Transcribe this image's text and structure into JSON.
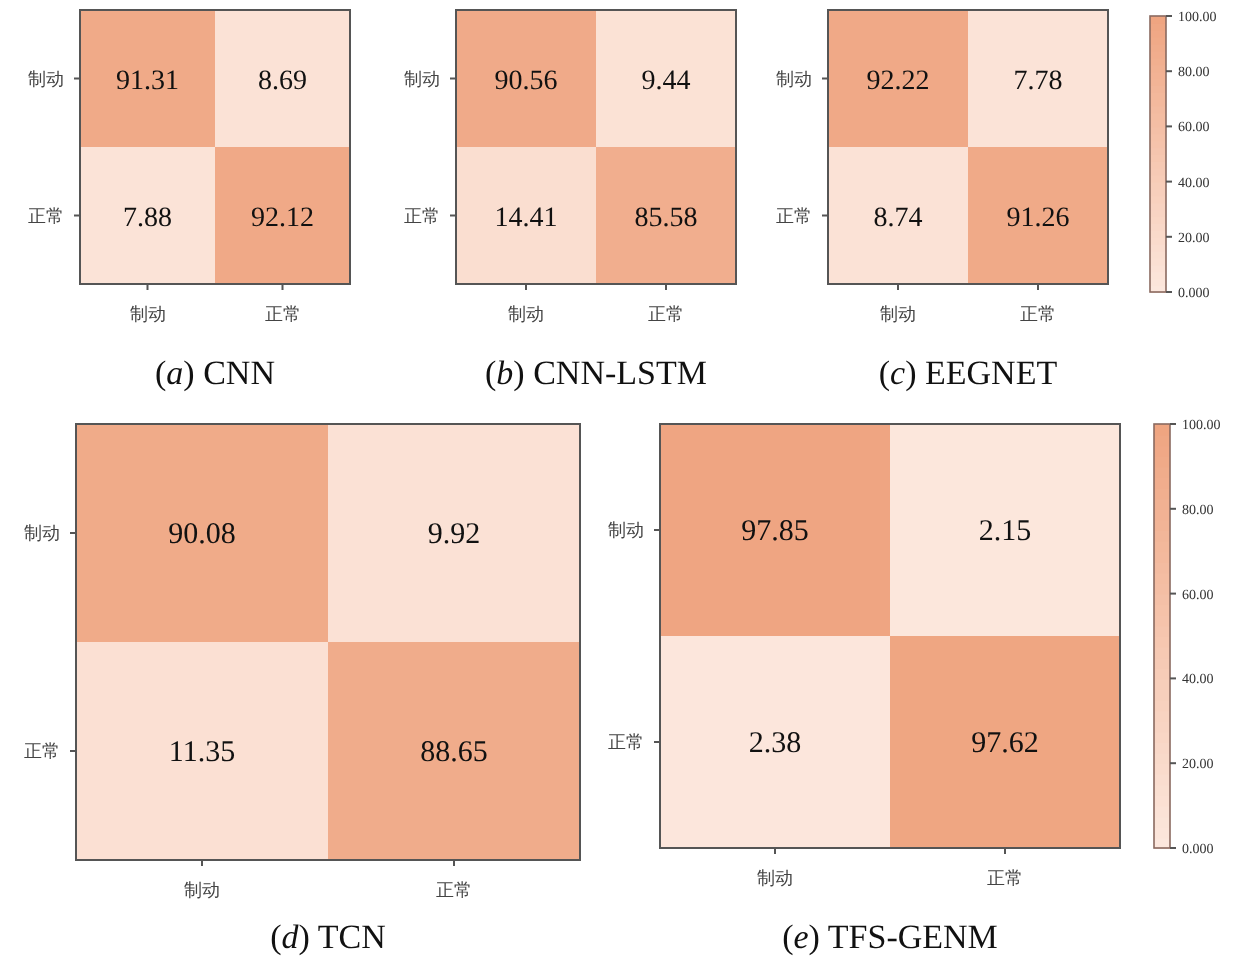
{
  "chart_data": [
    {
      "type": "heatmap",
      "title": "(*a*) CNN",
      "categories": [
        "制动",
        "正常"
      ],
      "y_categories": [
        "制动",
        "正常"
      ],
      "cells": [
        [
          91.31,
          8.69
        ],
        [
          7.88,
          92.12
        ]
      ],
      "data_labels": true
    },
    {
      "type": "heatmap",
      "title": "(*b*) CNN-LSTM",
      "categories": [
        "制动",
        "正常"
      ],
      "y_categories": [
        "制动",
        "正常"
      ],
      "cells": [
        [
          90.56,
          9.44
        ],
        [
          14.41,
          85.58
        ]
      ],
      "data_labels": true
    },
    {
      "type": "heatmap",
      "title": "(*c*) EEGNET",
      "categories": [
        "制动",
        "正常"
      ],
      "y_categories": [
        "制动",
        "正常"
      ],
      "cells": [
        [
          92.22,
          7.78
        ],
        [
          8.74,
          91.26
        ]
      ],
      "data_labels": true,
      "clim": [
        0,
        100
      ],
      "cticks": [
        {
          "value": 0,
          "label": "0.000"
        },
        {
          "value": 20,
          "label": "20.00"
        },
        {
          "value": 40,
          "label": "40.00"
        },
        {
          "value": 60,
          "label": "60.00"
        },
        {
          "value": 80,
          "label": "80.00"
        },
        {
          "value": 100,
          "label": "100.00"
        }
      ]
    },
    {
      "type": "heatmap",
      "title": "(*d*) TCN",
      "categories": [
        "制动",
        "正常"
      ],
      "y_categories": [
        "制动",
        "正常"
      ],
      "cells": [
        [
          90.08,
          9.92
        ],
        [
          11.35,
          88.65
        ]
      ],
      "data_labels": true
    },
    {
      "type": "heatmap",
      "title": "(*e*) TFS-GENM",
      "categories": [
        "制动",
        "正常"
      ],
      "y_categories": [
        "制动",
        "正常"
      ],
      "cells": [
        [
          97.85,
          2.15
        ],
        [
          2.38,
          97.62
        ]
      ],
      "data_labels": true,
      "clim": [
        0,
        100
      ],
      "cticks": [
        {
          "value": 0,
          "label": "0.000"
        },
        {
          "value": 20,
          "label": "20.00"
        },
        {
          "value": 40,
          "label": "40.00"
        },
        {
          "value": 60,
          "label": "60.00"
        },
        {
          "value": 80,
          "label": "80.00"
        },
        {
          "value": 100,
          "label": "100.00"
        }
      ]
    }
  ]
}
